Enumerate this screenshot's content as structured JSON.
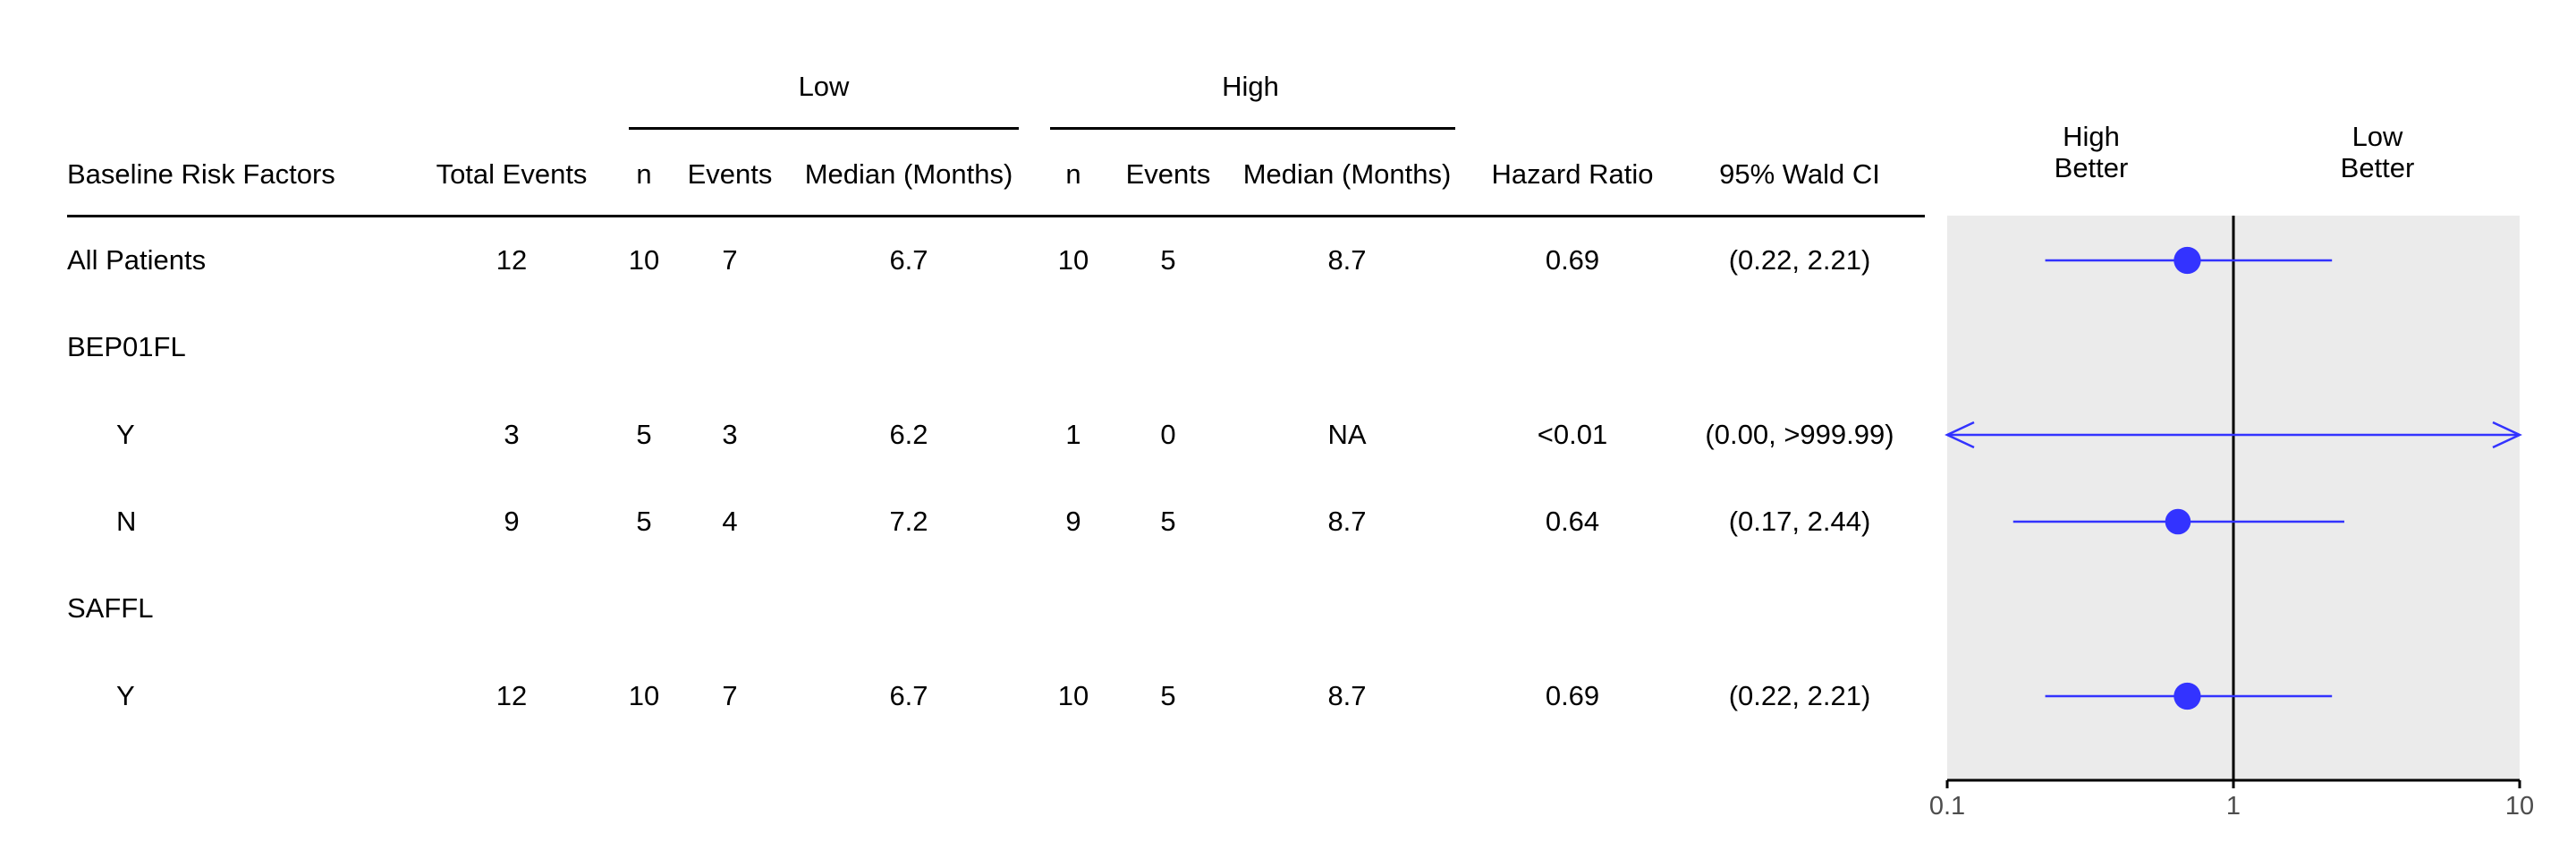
{
  "header": {
    "group_low": "Low",
    "group_high": "High",
    "col_factor": "Baseline Risk Factors",
    "col_total": "Total Events",
    "col_low_n": "n",
    "col_low_events": "Events",
    "col_low_median": "Median (Months)",
    "col_high_n": "n",
    "col_high_events": "Events",
    "col_high_median": "Median (Months)",
    "col_hr": "Hazard Ratio",
    "col_ci": "95% Wald CI",
    "forest_left_line1": "High",
    "forest_left_line2": "Better",
    "forest_right_line1": "Low",
    "forest_right_line2": "Better"
  },
  "rows": [
    {
      "label": "All Patients",
      "total": "12",
      "low_n": "10",
      "low_events": "7",
      "low_median": "6.7",
      "high_n": "10",
      "high_events": "5",
      "high_median": "8.7",
      "hr": "0.69",
      "ci": "(0.22, 2.21)"
    },
    {
      "label": "BEP01FL"
    },
    {
      "label": "Y",
      "total": "3",
      "low_n": "5",
      "low_events": "3",
      "low_median": "6.2",
      "high_n": "1",
      "high_events": "0",
      "high_median": "NA",
      "hr": "<0.01",
      "ci": "(0.00, >999.99)"
    },
    {
      "label": "N",
      "total": "9",
      "low_n": "5",
      "low_events": "4",
      "low_median": "7.2",
      "high_n": "9",
      "high_events": "5",
      "high_median": "8.7",
      "hr": "0.64",
      "ci": "(0.17, 2.44)"
    },
    {
      "label": "SAFFL"
    },
    {
      "label": "Y",
      "total": "12",
      "low_n": "10",
      "low_events": "7",
      "low_median": "6.7",
      "high_n": "10",
      "high_events": "5",
      "high_median": "8.7",
      "hr": "0.69",
      "ci": "(0.22, 2.21)"
    }
  ],
  "chart_data": {
    "type": "scatter",
    "description_free": true,
    "x_scale": "log",
    "xlim": [
      0.1,
      10
    ],
    "x_ticks": [
      "0.1",
      "1",
      "10"
    ],
    "reference_line": 1,
    "points": [
      {
        "row": 0,
        "hr": 0.69,
        "ci_low": 0.22,
        "ci_high": 2.21,
        "size_n": 20
      },
      {
        "row": 2,
        "hr": null,
        "ci_low": null,
        "ci_high": null,
        "arrows_both": true
      },
      {
        "row": 3,
        "hr": 0.64,
        "ci_low": 0.17,
        "ci_high": 2.44,
        "size_n": 14
      },
      {
        "row": 5,
        "hr": 0.69,
        "ci_low": 0.22,
        "ci_high": 2.21,
        "size_n": 20
      }
    ],
    "colors": {
      "marker": "#3333ff",
      "panel": "#ebebeb",
      "axis": "#000000"
    }
  }
}
